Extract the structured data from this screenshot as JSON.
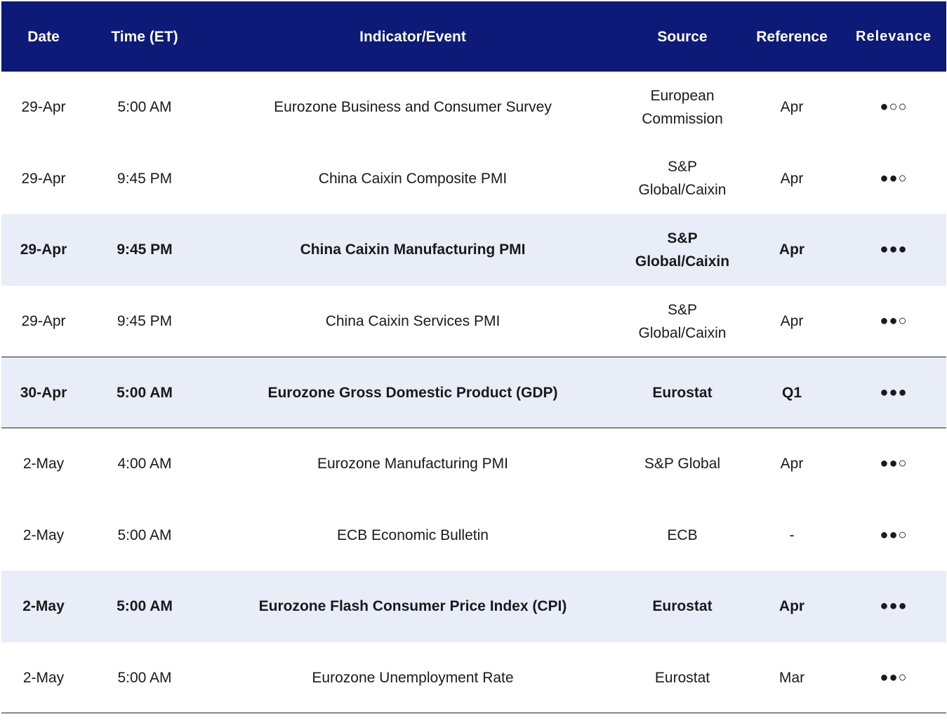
{
  "header": {
    "date": "Date",
    "time": "Time (ET)",
    "event": "Indicator/Event",
    "source": "Source",
    "reference": "Reference",
    "relevance": "Relevance"
  },
  "rows": [
    {
      "date": "29-Apr",
      "time": "5:00 AM",
      "event": "Eurozone Business and Consumer Survey",
      "source": "European Commission",
      "reference": "Apr",
      "relevance": "●○○"
    },
    {
      "date": "29-Apr",
      "time": "9:45 PM",
      "event": "China Caixin Composite PMI",
      "source": "S&P Global/Caixin",
      "reference": "Apr",
      "relevance": "●●○"
    },
    {
      "date": "29-Apr",
      "time": "9:45 PM",
      "event": "China Caixin Manufacturing PMI",
      "source": "S&P Global/Caixin",
      "reference": "Apr",
      "relevance": "●●●"
    },
    {
      "date": "29-Apr",
      "time": "9:45 PM",
      "event": "China Caixin Services PMI",
      "source": "S&P Global/Caixin",
      "reference": "Apr",
      "relevance": "●●○"
    },
    {
      "date": "30-Apr",
      "time": "5:00 AM",
      "event": "Eurozone Gross Domestic Product (GDP)",
      "source": "Eurostat",
      "reference": "Q1",
      "relevance": "●●●"
    },
    {
      "date": "2-May",
      "time": "4:00 AM",
      "event": "Eurozone Manufacturing PMI",
      "source": "S&P Global",
      "reference": "Apr",
      "relevance": "●●○"
    },
    {
      "date": "2-May",
      "time": "5:00 AM",
      "event": "ECB Economic Bulletin",
      "source": "ECB",
      "reference": "-",
      "relevance": "●●○"
    },
    {
      "date": "2-May",
      "time": "5:00 AM",
      "event": "Eurozone Flash Consumer Price Index (CPI)",
      "source": "Eurostat",
      "reference": "Apr",
      "relevance": "●●●"
    },
    {
      "date": "2-May",
      "time": "5:00 AM",
      "event": "Eurozone Unemployment Rate",
      "source": "Eurostat",
      "reference": "Mar",
      "relevance": "●●○"
    }
  ]
}
